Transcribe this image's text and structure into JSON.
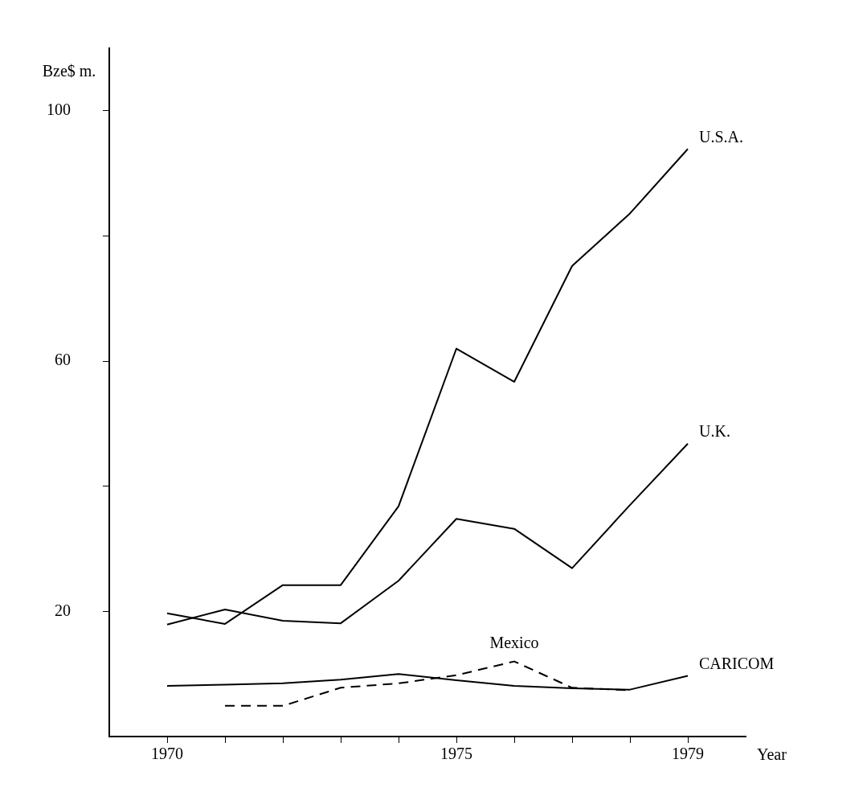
{
  "chart_data": {
    "type": "line",
    "xlabel": "Year",
    "ylabel": "Bze$ m.",
    "xlim": [
      1969,
      1980
    ],
    "ylim": [
      0,
      110
    ],
    "xticks": [
      {
        "value": 1970,
        "label": "1970"
      },
      {
        "value": 1971,
        "label": null
      },
      {
        "value": 1972,
        "label": null
      },
      {
        "value": 1973,
        "label": null
      },
      {
        "value": 1974,
        "label": null
      },
      {
        "value": 1975,
        "label": "1975"
      },
      {
        "value": 1976,
        "label": null
      },
      {
        "value": 1977,
        "label": null
      },
      {
        "value": 1978,
        "label": null
      },
      {
        "value": 1979,
        "label": "1979"
      }
    ],
    "yticks": [
      20,
      {
        "value": 40,
        "label": null
      },
      60,
      {
        "value": 80,
        "label": null
      },
      100
    ],
    "grid": false,
    "legend": false,
    "marker": "none",
    "series": [
      {
        "name": "U.S.A.",
        "color": "#000000",
        "line_style": "solid",
        "x": [
          1970,
          1971,
          1972,
          1973,
          1974,
          1975,
          1976,
          1977,
          1978,
          1979
        ],
        "values": [
          19.7,
          18,
          24.2,
          24.2,
          36.8,
          62,
          56.7,
          75.2,
          83.6,
          93.9
        ]
      },
      {
        "name": "U.K.",
        "color": "#000000",
        "line_style": "solid",
        "x": [
          1970,
          1971,
          1972,
          1973,
          1974,
          1975,
          1976,
          1977,
          1978,
          1979
        ],
        "values": [
          17.9,
          20.3,
          18.5,
          18.1,
          24.9,
          34.8,
          33.2,
          26.9,
          37,
          46.8
        ]
      },
      {
        "name": "Mexico",
        "color": "#000000",
        "line_style": "dashed",
        "x": [
          1971,
          1972,
          1973,
          1974,
          1975,
          1976,
          1977,
          1978
        ],
        "values": [
          4.9,
          4.9,
          7.8,
          8.5,
          9.8,
          12,
          7.8,
          7.4
        ]
      },
      {
        "name": "CARICOM",
        "color": "#000000",
        "line_style": "solid",
        "x": [
          1970,
          1971,
          1972,
          1973,
          1974,
          1975,
          1976,
          1977,
          1978,
          1979
        ],
        "values": [
          8.1,
          8.3,
          8.5,
          9.1,
          10,
          9,
          8.1,
          7.7,
          7.5,
          9.7
        ]
      }
    ]
  }
}
